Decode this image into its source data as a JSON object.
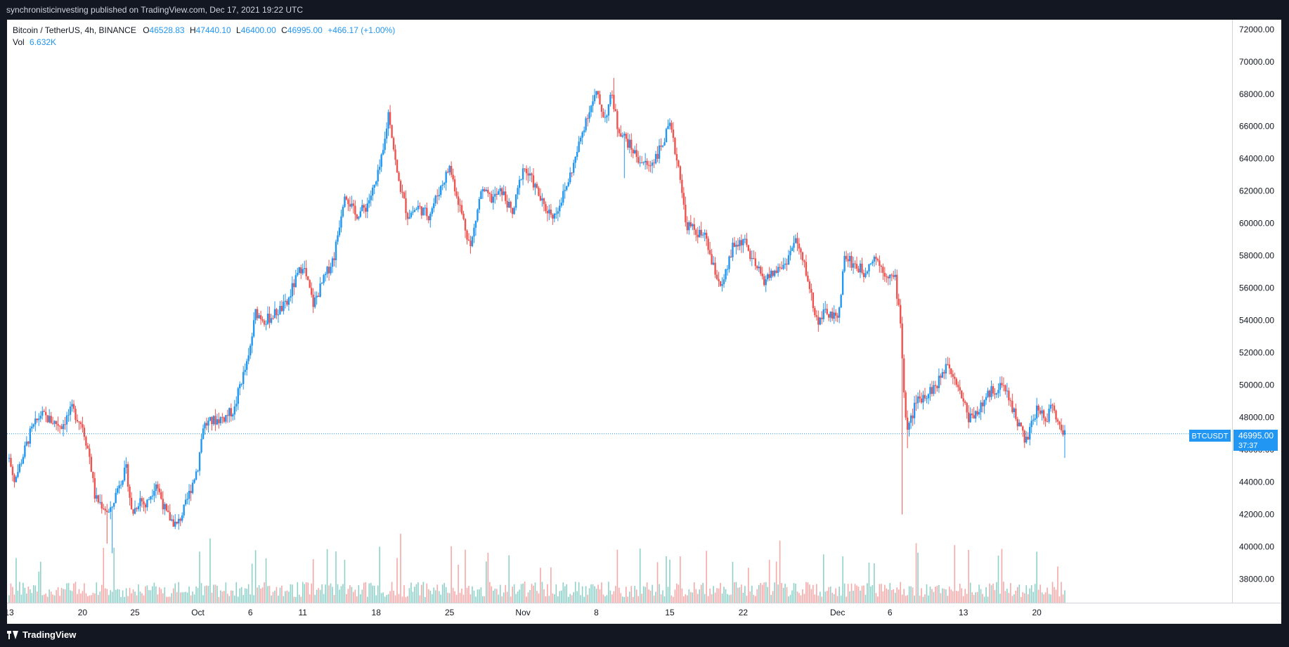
{
  "header": {
    "published_line": "synchronisticinvesting published on TradingView.com, Dec 17, 2021 19:22 UTC"
  },
  "footer": {
    "brand": "TradingView"
  },
  "colors": {
    "up": "#2196f3",
    "down": "#ef5350",
    "vol_up": "#8fd1c9",
    "vol_down": "#f7a8a8",
    "frame": "#131722"
  },
  "legend": {
    "symbol": "Bitcoin / TetherUS, 4h, BINANCE",
    "o_label": "O",
    "o_value": "46528.83",
    "h_label": "H",
    "h_value": "47440.10",
    "l_label": "L",
    "l_value": "46400.00",
    "c_label": "C",
    "c_value": "46995.00",
    "change": "+466.17 (+1.00%)",
    "vol_label": "Vol",
    "vol_value": "6.632K"
  },
  "price_tag": {
    "symbol": "BTCUSDT",
    "price": "46995.00",
    "countdown": "37:37"
  },
  "chart_data": {
    "type": "candlestick",
    "timeframe": "4h",
    "exchange": "BINANCE",
    "symbol": "Bitcoin / TetherUS",
    "x_ticks": [
      "13",
      "20",
      "25",
      "Oct",
      "6",
      "11",
      "18",
      "25",
      "Nov",
      "8",
      "15",
      "22",
      "Dec",
      "6",
      "13",
      "20"
    ],
    "x_tick_day_index": [
      0,
      7,
      12,
      18,
      23,
      28,
      35,
      42,
      49,
      56,
      63,
      70,
      79,
      84,
      91,
      98
    ],
    "y_ticks": [
      "38000.00",
      "40000.00",
      "42000.00",
      "44000.00",
      "46000.00",
      "48000.00",
      "50000.00",
      "52000.00",
      "54000.00",
      "56000.00",
      "58000.00",
      "60000.00",
      "62000.00",
      "64000.00",
      "66000.00",
      "68000.00",
      "70000.00",
      "72000.00"
    ],
    "y_range": [
      36500,
      72600
    ],
    "last_price": 46995,
    "keypoints_close": [
      [
        0,
        45500
      ],
      [
        0.5,
        44000
      ],
      [
        1,
        45000
      ],
      [
        2,
        47000
      ],
      [
        3,
        48200
      ],
      [
        4,
        47800
      ],
      [
        5,
        47500
      ],
      [
        6,
        48500
      ],
      [
        7,
        47500
      ],
      [
        7.7,
        45500
      ],
      [
        8.2,
        43000
      ],
      [
        9,
        42500
      ],
      [
        9.6,
        42000
      ],
      [
        10.5,
        44000
      ],
      [
        11.2,
        44800
      ],
      [
        11.7,
        42000
      ],
      [
        12.5,
        43000
      ],
      [
        13,
        42500
      ],
      [
        14,
        44000
      ],
      [
        15,
        42000
      ],
      [
        16,
        41300
      ],
      [
        16.8,
        42500
      ],
      [
        17.5,
        44000
      ],
      [
        18,
        45000
      ],
      [
        18.5,
        47500
      ],
      [
        19.5,
        47800
      ],
      [
        20.5,
        48000
      ],
      [
        21.5,
        48500
      ],
      [
        22,
        50000
      ],
      [
        22.8,
        51500
      ],
      [
        23.5,
        54500
      ],
      [
        24.5,
        54000
      ],
      [
        25.5,
        54500
      ],
      [
        26.5,
        55000
      ],
      [
        27,
        56000
      ],
      [
        28,
        57500
      ],
      [
        29,
        55000
      ],
      [
        30,
        56500
      ],
      [
        31,
        58000
      ],
      [
        31.5,
        60000
      ],
      [
        32,
        62000
      ],
      [
        33,
        60500
      ],
      [
        34,
        61000
      ],
      [
        35,
        62500
      ],
      [
        35.7,
        64500
      ],
      [
        36.2,
        67000
      ],
      [
        37,
        63000
      ],
      [
        38,
        60500
      ],
      [
        39,
        61000
      ],
      [
        40,
        60500
      ],
      [
        41,
        62000
      ],
      [
        42,
        63500
      ],
      [
        43,
        61000
      ],
      [
        44,
        58500
      ],
      [
        45,
        62000
      ],
      [
        46,
        61500
      ],
      [
        47,
        62000
      ],
      [
        48,
        60500
      ],
      [
        49,
        63500
      ],
      [
        50,
        62500
      ],
      [
        51,
        61000
      ],
      [
        52,
        60500
      ],
      [
        53,
        62000
      ],
      [
        54,
        64000
      ],
      [
        55,
        66500
      ],
      [
        56,
        68000
      ],
      [
        56.8,
        66500
      ],
      [
        57.5,
        68000
      ],
      [
        58,
        66000
      ],
      [
        59,
        65000
      ],
      [
        60,
        64000
      ],
      [
        61,
        63500
      ],
      [
        62,
        64500
      ],
      [
        63,
        66000
      ],
      [
        64,
        63000
      ],
      [
        64.5,
        60000
      ],
      [
        65.5,
        59500
      ],
      [
        66.5,
        59000
      ],
      [
        67,
        57500
      ],
      [
        68,
        56000
      ],
      [
        69,
        58500
      ],
      [
        70,
        59000
      ],
      [
        71,
        57500
      ],
      [
        72,
        56500
      ],
      [
        73,
        57000
      ],
      [
        74,
        57500
      ],
      [
        75,
        59000
      ],
      [
        76,
        57000
      ],
      [
        77,
        54000
      ],
      [
        78,
        54500
      ],
      [
        79,
        54000
      ],
      [
        79.7,
        58000
      ],
      [
        80.5,
        57500
      ],
      [
        81.5,
        57000
      ],
      [
        82.5,
        58000
      ],
      [
        83.5,
        57000
      ],
      [
        84.5,
        56500
      ],
      [
        85,
        54000
      ],
      [
        85.3,
        50000
      ],
      [
        85.6,
        47000
      ],
      [
        86.5,
        49000
      ],
      [
        87.5,
        49500
      ],
      [
        88.5,
        50000
      ],
      [
        89.5,
        51500
      ],
      [
        90.5,
        50000
      ],
      [
        91.5,
        48000
      ],
      [
        92.5,
        48500
      ],
      [
        93.5,
        49500
      ],
      [
        94.5,
        50000
      ],
      [
        95.2,
        49500
      ],
      [
        96,
        48000
      ],
      [
        97,
        46500
      ],
      [
        98,
        48500
      ],
      [
        99,
        48000
      ],
      [
        99.5,
        49000
      ],
      [
        100,
        47500
      ],
      [
        100.7,
        46995
      ]
    ],
    "wick_extremes": [
      {
        "day": 9.3,
        "low": 40200
      },
      {
        "day": 9.8,
        "low": 39600
      },
      {
        "day": 36.2,
        "high": 67000
      },
      {
        "day": 57.6,
        "high": 69000
      },
      {
        "day": 58.6,
        "low": 62800
      },
      {
        "day": 85.2,
        "low": 42000
      },
      {
        "day": 85.6,
        "low": 46100
      },
      {
        "day": 100.6,
        "low": 45500
      }
    ]
  }
}
